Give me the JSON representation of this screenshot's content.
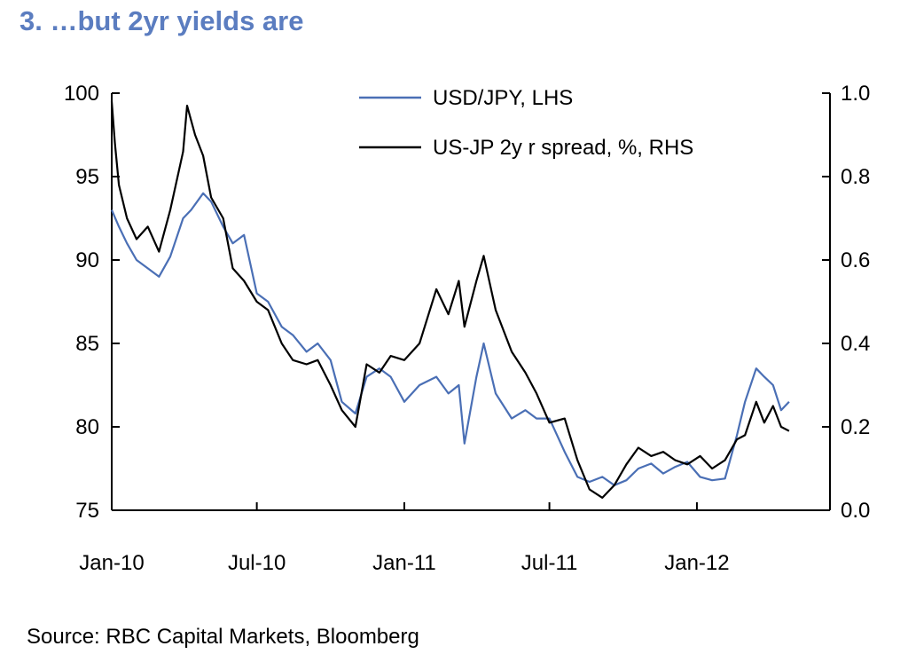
{
  "title": "3. …but 2yr yields are",
  "source": "Source: RBC Capital Markets, Bloomberg",
  "chart_data": {
    "type": "line",
    "x_axis": {
      "type": "date",
      "range": [
        "2010-01-01",
        "2012-06-15"
      ],
      "tick_labels": [
        "Jan-10",
        "Jul-10",
        "Jan-11",
        "Jul-11",
        "Jan-12"
      ],
      "tick_dates": [
        "2010-01-01",
        "2010-07-01",
        "2011-01-01",
        "2011-07-01",
        "2012-01-01"
      ]
    },
    "y_left": {
      "min": 75,
      "max": 100,
      "ticks": [
        "75",
        "80",
        "85",
        "90",
        "95",
        "100"
      ]
    },
    "y_right": {
      "min": 0.0,
      "max": 1.0,
      "ticks": [
        "0.0",
        "0.2",
        "0.4",
        "0.6",
        "0.8",
        "1.0"
      ]
    },
    "legend_position": "top-center",
    "series": [
      {
        "name": "USD/JPY, LHS",
        "axis": "left",
        "color": "#4a6fb5",
        "points": [
          [
            "2010-01-01",
            93.0
          ],
          [
            "2010-01-10",
            92.0
          ],
          [
            "2010-01-20",
            91.0
          ],
          [
            "2010-02-01",
            90.0
          ],
          [
            "2010-02-15",
            89.5
          ],
          [
            "2010-03-01",
            89.0
          ],
          [
            "2010-03-15",
            90.2
          ],
          [
            "2010-03-31",
            92.5
          ],
          [
            "2010-04-10",
            93.0
          ],
          [
            "2010-04-25",
            94.0
          ],
          [
            "2010-05-05",
            93.5
          ],
          [
            "2010-05-20",
            92.0
          ],
          [
            "2010-06-01",
            91.0
          ],
          [
            "2010-06-15",
            91.5
          ],
          [
            "2010-07-01",
            88.0
          ],
          [
            "2010-07-15",
            87.5
          ],
          [
            "2010-08-01",
            86.0
          ],
          [
            "2010-08-15",
            85.5
          ],
          [
            "2010-09-01",
            84.5
          ],
          [
            "2010-09-15",
            85.0
          ],
          [
            "2010-10-01",
            84.0
          ],
          [
            "2010-10-15",
            81.5
          ],
          [
            "2010-11-01",
            80.8
          ],
          [
            "2010-11-15",
            83.0
          ],
          [
            "2010-12-01",
            83.5
          ],
          [
            "2010-12-15",
            83.0
          ],
          [
            "2011-01-01",
            81.5
          ],
          [
            "2011-01-20",
            82.5
          ],
          [
            "2011-02-10",
            83.0
          ],
          [
            "2011-02-25",
            82.0
          ],
          [
            "2011-03-10",
            82.5
          ],
          [
            "2011-03-17",
            79.0
          ],
          [
            "2011-04-01",
            83.0
          ],
          [
            "2011-04-10",
            85.0
          ],
          [
            "2011-04-25",
            82.0
          ],
          [
            "2011-05-15",
            80.5
          ],
          [
            "2011-06-01",
            81.0
          ],
          [
            "2011-06-15",
            80.5
          ],
          [
            "2011-07-01",
            80.5
          ],
          [
            "2011-07-20",
            78.5
          ],
          [
            "2011-08-05",
            77.0
          ],
          [
            "2011-08-20",
            76.7
          ],
          [
            "2011-09-05",
            77.0
          ],
          [
            "2011-09-20",
            76.5
          ],
          [
            "2011-10-05",
            76.8
          ],
          [
            "2011-10-20",
            77.5
          ],
          [
            "2011-11-05",
            77.8
          ],
          [
            "2011-11-20",
            77.2
          ],
          [
            "2011-12-05",
            77.6
          ],
          [
            "2011-12-20",
            77.9
          ],
          [
            "2012-01-05",
            77.0
          ],
          [
            "2012-01-20",
            76.8
          ],
          [
            "2012-02-05",
            76.9
          ],
          [
            "2012-02-20",
            79.5
          ],
          [
            "2012-03-01",
            81.5
          ],
          [
            "2012-03-15",
            83.5
          ],
          [
            "2012-03-25",
            83.0
          ],
          [
            "2012-04-05",
            82.5
          ],
          [
            "2012-04-15",
            81.0
          ],
          [
            "2012-04-25",
            81.5
          ]
        ]
      },
      {
        "name": "US-JP 2y r spread, %, RHS",
        "axis": "right",
        "color": "#000000",
        "points": [
          [
            "2010-01-01",
            0.98
          ],
          [
            "2010-01-05",
            0.88
          ],
          [
            "2010-01-10",
            0.78
          ],
          [
            "2010-01-20",
            0.7
          ],
          [
            "2010-02-01",
            0.65
          ],
          [
            "2010-02-15",
            0.68
          ],
          [
            "2010-03-01",
            0.62
          ],
          [
            "2010-03-15",
            0.72
          ],
          [
            "2010-03-31",
            0.86
          ],
          [
            "2010-04-05",
            0.97
          ],
          [
            "2010-04-15",
            0.9
          ],
          [
            "2010-04-25",
            0.85
          ],
          [
            "2010-05-05",
            0.75
          ],
          [
            "2010-05-20",
            0.7
          ],
          [
            "2010-06-01",
            0.58
          ],
          [
            "2010-06-15",
            0.55
          ],
          [
            "2010-07-01",
            0.5
          ],
          [
            "2010-07-15",
            0.48
          ],
          [
            "2010-08-01",
            0.4
          ],
          [
            "2010-08-15",
            0.36
          ],
          [
            "2010-09-01",
            0.35
          ],
          [
            "2010-09-15",
            0.36
          ],
          [
            "2010-10-01",
            0.3
          ],
          [
            "2010-10-15",
            0.24
          ],
          [
            "2010-11-01",
            0.2
          ],
          [
            "2010-11-15",
            0.35
          ],
          [
            "2010-12-01",
            0.33
          ],
          [
            "2010-12-15",
            0.37
          ],
          [
            "2011-01-01",
            0.36
          ],
          [
            "2011-01-20",
            0.4
          ],
          [
            "2011-02-10",
            0.53
          ],
          [
            "2011-02-25",
            0.47
          ],
          [
            "2011-03-10",
            0.55
          ],
          [
            "2011-03-17",
            0.44
          ],
          [
            "2011-04-01",
            0.55
          ],
          [
            "2011-04-10",
            0.61
          ],
          [
            "2011-04-25",
            0.48
          ],
          [
            "2011-05-15",
            0.38
          ],
          [
            "2011-06-01",
            0.33
          ],
          [
            "2011-06-15",
            0.28
          ],
          [
            "2011-07-01",
            0.21
          ],
          [
            "2011-07-20",
            0.22
          ],
          [
            "2011-08-05",
            0.12
          ],
          [
            "2011-08-20",
            0.05
          ],
          [
            "2011-09-05",
            0.03
          ],
          [
            "2011-09-20",
            0.06
          ],
          [
            "2011-10-05",
            0.11
          ],
          [
            "2011-10-20",
            0.15
          ],
          [
            "2011-11-05",
            0.13
          ],
          [
            "2011-11-20",
            0.14
          ],
          [
            "2011-12-05",
            0.12
          ],
          [
            "2011-12-20",
            0.11
          ],
          [
            "2012-01-05",
            0.13
          ],
          [
            "2012-01-20",
            0.1
          ],
          [
            "2012-02-05",
            0.12
          ],
          [
            "2012-02-20",
            0.17
          ],
          [
            "2012-03-01",
            0.18
          ],
          [
            "2012-03-15",
            0.26
          ],
          [
            "2012-03-25",
            0.21
          ],
          [
            "2012-04-05",
            0.25
          ],
          [
            "2012-04-15",
            0.2
          ],
          [
            "2012-04-25",
            0.19
          ]
        ]
      }
    ]
  }
}
